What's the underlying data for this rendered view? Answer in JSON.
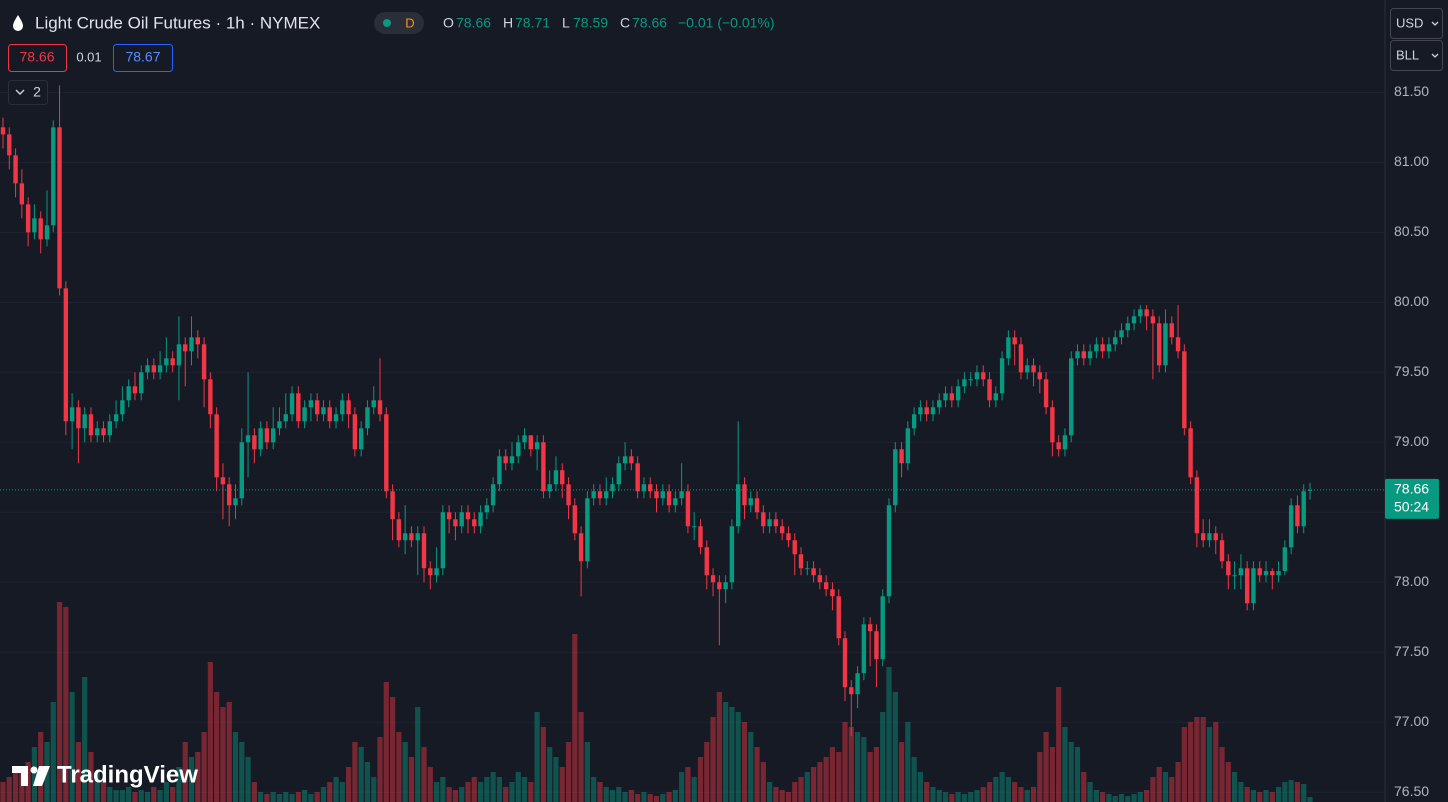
{
  "chart_data": {
    "type": "candlestick",
    "title": "Light Crude Oil Futures · 1h · NYMEX",
    "up_color": "#089981",
    "down_color": "#f23645",
    "ylim": [
      76.43,
      82.16
    ],
    "yticks": [
      {
        "value": 81.5,
        "label": "81.50"
      },
      {
        "value": 81,
        "label": "81.00"
      },
      {
        "value": 80.5,
        "label": "80.50"
      },
      {
        "value": 80,
        "label": "80.00"
      },
      {
        "value": 79.5,
        "label": "79.50"
      },
      {
        "value": 79,
        "label": "79.00"
      },
      {
        "value": 78.5,
        "label": "78.50"
      },
      {
        "value": 78,
        "label": "78.00"
      },
      {
        "value": 77.5,
        "label": "77.50"
      },
      {
        "value": 77,
        "label": "77.00"
      },
      {
        "value": 76.5,
        "label": "76.50"
      }
    ],
    "grid": true,
    "open": [
      81.25,
      81.2,
      81.05,
      80.85,
      80.7,
      80.5,
      80.6,
      80.45,
      80.55,
      81.25,
      80.1,
      79.15,
      79.25,
      79.1,
      79.2,
      79.05,
      79.1,
      79.05,
      79.15,
      79.2,
      79.3,
      79.4,
      79.35,
      79.5,
      79.55,
      79.5,
      79.55,
      79.6,
      79.55,
      79.7,
      79.65,
      79.75,
      79.7,
      79.45,
      79.2,
      78.75,
      78.7,
      78.55,
      78.6,
      79,
      79.05,
      78.95,
      79.1,
      79,
      79.1,
      79.15,
      79.2,
      79.35,
      79.15,
      79.25,
      79.3,
      79.2,
      79.25,
      79.15,
      79.2,
      79.3,
      79.2,
      78.95,
      79.1,
      79.25,
      79.3,
      79.2,
      78.65,
      78.45,
      78.3,
      78.35,
      78.3,
      78.35,
      78.1,
      78.05,
      78.1,
      78.5,
      78.45,
      78.4,
      78.5,
      78.45,
      78.4,
      78.5,
      78.55,
      78.7,
      78.9,
      78.85,
      78.9,
      79,
      79.05,
      78.95,
      79,
      78.65,
      78.7,
      78.8,
      78.7,
      78.55,
      78.35,
      78.15,
      78.6,
      78.65,
      78.6,
      78.65,
      78.7,
      78.85,
      78.9,
      78.85,
      78.65,
      78.7,
      78.65,
      78.6,
      78.65,
      78.55,
      78.6,
      78.65,
      78.4,
      78.4,
      78.25,
      78.05,
      78,
      77.95,
      78,
      78.4,
      78.7,
      78.55,
      78.6,
      78.5,
      78.4,
      78.45,
      78.4,
      78.35,
      78.3,
      78.2,
      78.1,
      78.1,
      78.05,
      78,
      77.95,
      77.9,
      77.6,
      77.25,
      77.2,
      77.35,
      77.7,
      77.65,
      77.45,
      77.9,
      78.55,
      78.95,
      78.85,
      79.1,
      79.2,
      79.25,
      79.2,
      79.25,
      79.3,
      79.35,
      79.3,
      79.4,
      79.45,
      79.45,
      79.5,
      79.45,
      79.3,
      79.35,
      79.6,
      79.75,
      79.7,
      79.5,
      79.55,
      79.5,
      79.45,
      79.25,
      79,
      78.95,
      79.05,
      79.6,
      79.65,
      79.6,
      79.65,
      79.7,
      79.65,
      79.7,
      79.75,
      79.8,
      79.85,
      79.9,
      79.95,
      79.9,
      79.85,
      79.55,
      79.85,
      79.75,
      79.65,
      79.1,
      78.75,
      78.35,
      78.3,
      78.35,
      78.3,
      78.15,
      78.05,
      78.05,
      78.1,
      77.85,
      78.1,
      78.05,
      78.08,
      78.05,
      78.08,
      78.25,
      78.55,
      78.4,
      78.66
    ],
    "high": [
      81.32,
      81.25,
      81.1,
      80.95,
      80.75,
      80.7,
      80.65,
      80.8,
      81.3,
      81.55,
      80.15,
      79.35,
      79.3,
      79.25,
      79.25,
      79.15,
      79.15,
      79.2,
      79.3,
      79.4,
      79.45,
      79.5,
      79.55,
      79.6,
      79.6,
      79.65,
      79.75,
      79.65,
      79.9,
      79.75,
      79.9,
      79.8,
      79.75,
      79.5,
      79.25,
      78.85,
      78.75,
      78.7,
      79.1,
      79.5,
      79.1,
      79.15,
      79.15,
      79.25,
      79.25,
      79.35,
      79.4,
      79.4,
      79.3,
      79.35,
      79.35,
      79.3,
      79.3,
      79.25,
      79.35,
      79.35,
      79.25,
      79.15,
      79.3,
      79.4,
      79.6,
      79.25,
      78.7,
      78.5,
      78.55,
      78.4,
      78.4,
      78.4,
      78.15,
      78.25,
      78.55,
      78.55,
      78.5,
      78.55,
      78.55,
      78.5,
      78.55,
      78.6,
      78.75,
      78.95,
      78.95,
      79,
      79.05,
      79.1,
      79.05,
      79.05,
      79.05,
      78.8,
      78.9,
      78.85,
      78.75,
      78.6,
      78.4,
      78.65,
      78.7,
      78.7,
      78.75,
      78.75,
      78.9,
      79,
      78.95,
      78.9,
      78.75,
      78.75,
      78.7,
      78.7,
      78.7,
      78.65,
      78.85,
      78.7,
      78.5,
      78.45,
      78.3,
      78.1,
      78.05,
      78.05,
      78.45,
      79.15,
      78.75,
      78.65,
      78.65,
      78.55,
      78.5,
      78.5,
      78.45,
      78.4,
      78.35,
      78.25,
      78.15,
      78.15,
      78.1,
      78.05,
      78,
      77.95,
      77.65,
      77.3,
      77.4,
      77.75,
      77.75,
      77.7,
      77.95,
      78.6,
      79,
      79,
      79.15,
      79.25,
      79.3,
      79.3,
      79.3,
      79.35,
      79.4,
      79.4,
      79.45,
      79.5,
      79.5,
      79.55,
      79.55,
      79.5,
      79.4,
      79.65,
      79.8,
      79.8,
      79.75,
      79.6,
      79.6,
      79.55,
      79.5,
      79.3,
      79.05,
      79.1,
      79.65,
      79.7,
      79.7,
      79.7,
      79.75,
      79.75,
      79.75,
      79.8,
      79.85,
      79.9,
      79.95,
      79.98,
      79.98,
      79.95,
      79.9,
      79.95,
      79.9,
      79.98,
      79.7,
      79.15,
      78.8,
      78.45,
      78.45,
      78.4,
      78.35,
      78.2,
      78.15,
      78.2,
      78.15,
      78.15,
      78.15,
      78.15,
      78.1,
      78.15,
      78.3,
      78.6,
      78.62,
      78.7,
      78.71
    ],
    "low": [
      81.1,
      80.95,
      80.75,
      80.6,
      80.4,
      80.45,
      80.35,
      80.4,
      80.5,
      80.05,
      79.05,
      78.95,
      78.85,
      79,
      79,
      79,
      79,
      79,
      79.1,
      79.15,
      79.25,
      79.3,
      79.3,
      79.45,
      79.45,
      79.45,
      79.5,
      79.5,
      79.3,
      79.4,
      79.55,
      79.6,
      79.25,
      79.1,
      78.65,
      78.45,
      78.4,
      78.45,
      78.55,
      78.75,
      78.85,
      78.9,
      78.95,
      78.95,
      79.05,
      79.1,
      79.15,
      79.1,
      79.1,
      79.15,
      79.15,
      79.15,
      79.1,
      79.1,
      79.15,
      79.1,
      78.9,
      78.9,
      79.05,
      79.2,
      79.15,
      78.6,
      78.3,
      78.25,
      78.2,
      78.25,
      78.05,
      78,
      77.95,
      78,
      78.05,
      78.35,
      78.3,
      78.35,
      78.35,
      78.35,
      78.35,
      78.45,
      78.5,
      78.65,
      78.8,
      78.8,
      78.85,
      78.95,
      78.9,
      78.8,
      78.6,
      78.6,
      78.65,
      78.6,
      78.45,
      78.3,
      77.9,
      78.1,
      78.55,
      78.55,
      78.55,
      78.6,
      78.65,
      78.8,
      78.8,
      78.6,
      78.6,
      78.6,
      78.5,
      78.55,
      78.5,
      78.5,
      78.55,
      78.35,
      78.3,
      78.2,
      77.95,
      77.9,
      77.55,
      77.85,
      77.95,
      78.35,
      78.45,
      78.5,
      78.45,
      78.35,
      78.35,
      78.35,
      78.3,
      78.25,
      78.05,
      78.05,
      78.05,
      78,
      77.95,
      77.9,
      77.8,
      77.55,
      77.15,
      76.9,
      77.1,
      77.3,
      77.4,
      77.25,
      77.4,
      77.85,
      78.5,
      78.75,
      78.8,
      79.05,
      79.15,
      79.15,
      79.15,
      79.2,
      79.25,
      79.25,
      79.25,
      79.35,
      79.4,
      79.4,
      79.4,
      79.25,
      79.25,
      79.3,
      79.55,
      79.55,
      79.45,
      79.45,
      79.4,
      79.35,
      79.2,
      78.9,
      78.9,
      78.9,
      79,
      79.55,
      79.55,
      79.55,
      79.6,
      79.6,
      79.6,
      79.65,
      79.7,
      79.75,
      79.8,
      79.85,
      79.8,
      79.45,
      79.5,
      79.5,
      79.7,
      79.6,
      79.05,
      78.7,
      78.25,
      78.25,
      78.25,
      78.2,
      78.1,
      77.95,
      77.95,
      77.95,
      77.8,
      77.8,
      78,
      78,
      77.95,
      78,
      78.05,
      78.2,
      78.35,
      78.35,
      78.59
    ],
    "close": [
      81.2,
      81.05,
      80.85,
      80.7,
      80.5,
      80.6,
      80.45,
      80.55,
      81.25,
      80.1,
      79.15,
      79.25,
      79.1,
      79.2,
      79.05,
      79.1,
      79.05,
      79.15,
      79.2,
      79.3,
      79.4,
      79.35,
      79.5,
      79.55,
      79.5,
      79.55,
      79.6,
      79.55,
      79.7,
      79.65,
      79.75,
      79.7,
      79.45,
      79.2,
      78.75,
      78.7,
      78.55,
      78.6,
      79,
      79.05,
      78.95,
      79.1,
      79,
      79.1,
      79.15,
      79.2,
      79.35,
      79.15,
      79.25,
      79.3,
      79.2,
      79.25,
      79.15,
      79.2,
      79.3,
      79.2,
      78.95,
      79.1,
      79.25,
      79.3,
      79.2,
      78.65,
      78.45,
      78.3,
      78.35,
      78.3,
      78.35,
      78.1,
      78.05,
      78.1,
      78.5,
      78.45,
      78.4,
      78.5,
      78.45,
      78.4,
      78.5,
      78.55,
      78.7,
      78.9,
      78.85,
      78.9,
      79,
      79.05,
      78.95,
      79,
      78.65,
      78.7,
      78.8,
      78.7,
      78.55,
      78.35,
      78.15,
      78.6,
      78.65,
      78.6,
      78.65,
      78.7,
      78.85,
      78.9,
      78.85,
      78.65,
      78.7,
      78.65,
      78.6,
      78.65,
      78.55,
      78.6,
      78.65,
      78.4,
      78.4,
      78.25,
      78.05,
      78,
      77.95,
      78,
      78.4,
      78.7,
      78.55,
      78.6,
      78.5,
      78.4,
      78.45,
      78.4,
      78.35,
      78.3,
      78.2,
      78.1,
      78.1,
      78.05,
      78,
      77.95,
      77.9,
      77.6,
      77.25,
      77.2,
      77.35,
      77.7,
      77.65,
      77.45,
      77.9,
      78.55,
      78.95,
      78.85,
      79.1,
      79.2,
      79.25,
      79.2,
      79.25,
      79.3,
      79.35,
      79.3,
      79.4,
      79.45,
      79.45,
      79.5,
      79.45,
      79.3,
      79.35,
      79.6,
      79.75,
      79.7,
      79.5,
      79.55,
      79.5,
      79.45,
      79.25,
      79,
      78.95,
      79.05,
      79.6,
      79.65,
      79.6,
      79.65,
      79.7,
      79.65,
      79.7,
      79.75,
      79.8,
      79.85,
      79.9,
      79.95,
      79.9,
      79.85,
      79.55,
      79.85,
      79.75,
      79.65,
      79.1,
      78.75,
      78.35,
      78.3,
      78.35,
      78.3,
      78.15,
      78.05,
      78.05,
      78.1,
      77.85,
      78.1,
      78.05,
      78.08,
      78.05,
      78.08,
      78.25,
      78.55,
      78.4,
      78.65,
      78.66
    ],
    "volume": [
      20,
      25,
      30,
      35,
      40,
      55,
      70,
      60,
      100,
      200,
      195,
      110,
      60,
      125,
      50,
      30,
      20,
      15,
      12,
      12,
      15,
      10,
      12,
      10,
      15,
      12,
      20,
      15,
      35,
      60,
      45,
      50,
      70,
      140,
      110,
      95,
      100,
      70,
      60,
      45,
      20,
      10,
      8,
      10,
      8,
      10,
      8,
      10,
      12,
      8,
      10,
      15,
      20,
      25,
      20,
      35,
      60,
      55,
      40,
      25,
      65,
      120,
      105,
      70,
      60,
      45,
      95,
      55,
      35,
      20,
      25,
      15,
      12,
      15,
      20,
      25,
      20,
      25,
      30,
      25,
      15,
      20,
      30,
      25,
      20,
      90,
      75,
      55,
      45,
      35,
      60,
      168,
      90,
      60,
      25,
      20,
      15,
      12,
      15,
      10,
      12,
      8,
      10,
      8,
      6,
      8,
      10,
      12,
      30,
      35,
      25,
      45,
      60,
      85,
      110,
      100,
      95,
      90,
      80,
      70,
      55,
      40,
      20,
      15,
      12,
      10,
      20,
      25,
      30,
      35,
      40,
      45,
      55,
      50,
      80,
      75,
      70,
      65,
      50,
      55,
      90,
      135,
      110,
      60,
      80,
      45,
      30,
      20,
      15,
      12,
      10,
      8,
      10,
      8,
      10,
      12,
      15,
      20,
      25,
      30,
      25,
      20,
      15,
      12,
      15,
      50,
      70,
      55,
      115,
      75,
      60,
      55,
      30,
      20,
      12,
      10,
      8,
      6,
      8,
      6,
      8,
      10,
      12,
      25,
      35,
      30,
      25,
      40,
      75,
      80,
      85,
      85,
      75,
      80,
      55,
      40,
      30,
      20,
      15,
      12,
      10,
      12,
      10,
      15,
      20,
      22,
      20,
      18,
      5
    ],
    "last_price": 78.66,
    "countdown": "50:24",
    "ohlc_letters": [
      "O",
      "H",
      "L",
      "C"
    ],
    "change": "−0.01 (−0.01%)"
  },
  "ui": {
    "session_badge": "D",
    "sell_price": 78.66,
    "spread": 0.01,
    "buy_price": 78.67,
    "indicator_count": 2,
    "currency": "USD",
    "unit": "BLL",
    "logo": "TradingView"
  }
}
